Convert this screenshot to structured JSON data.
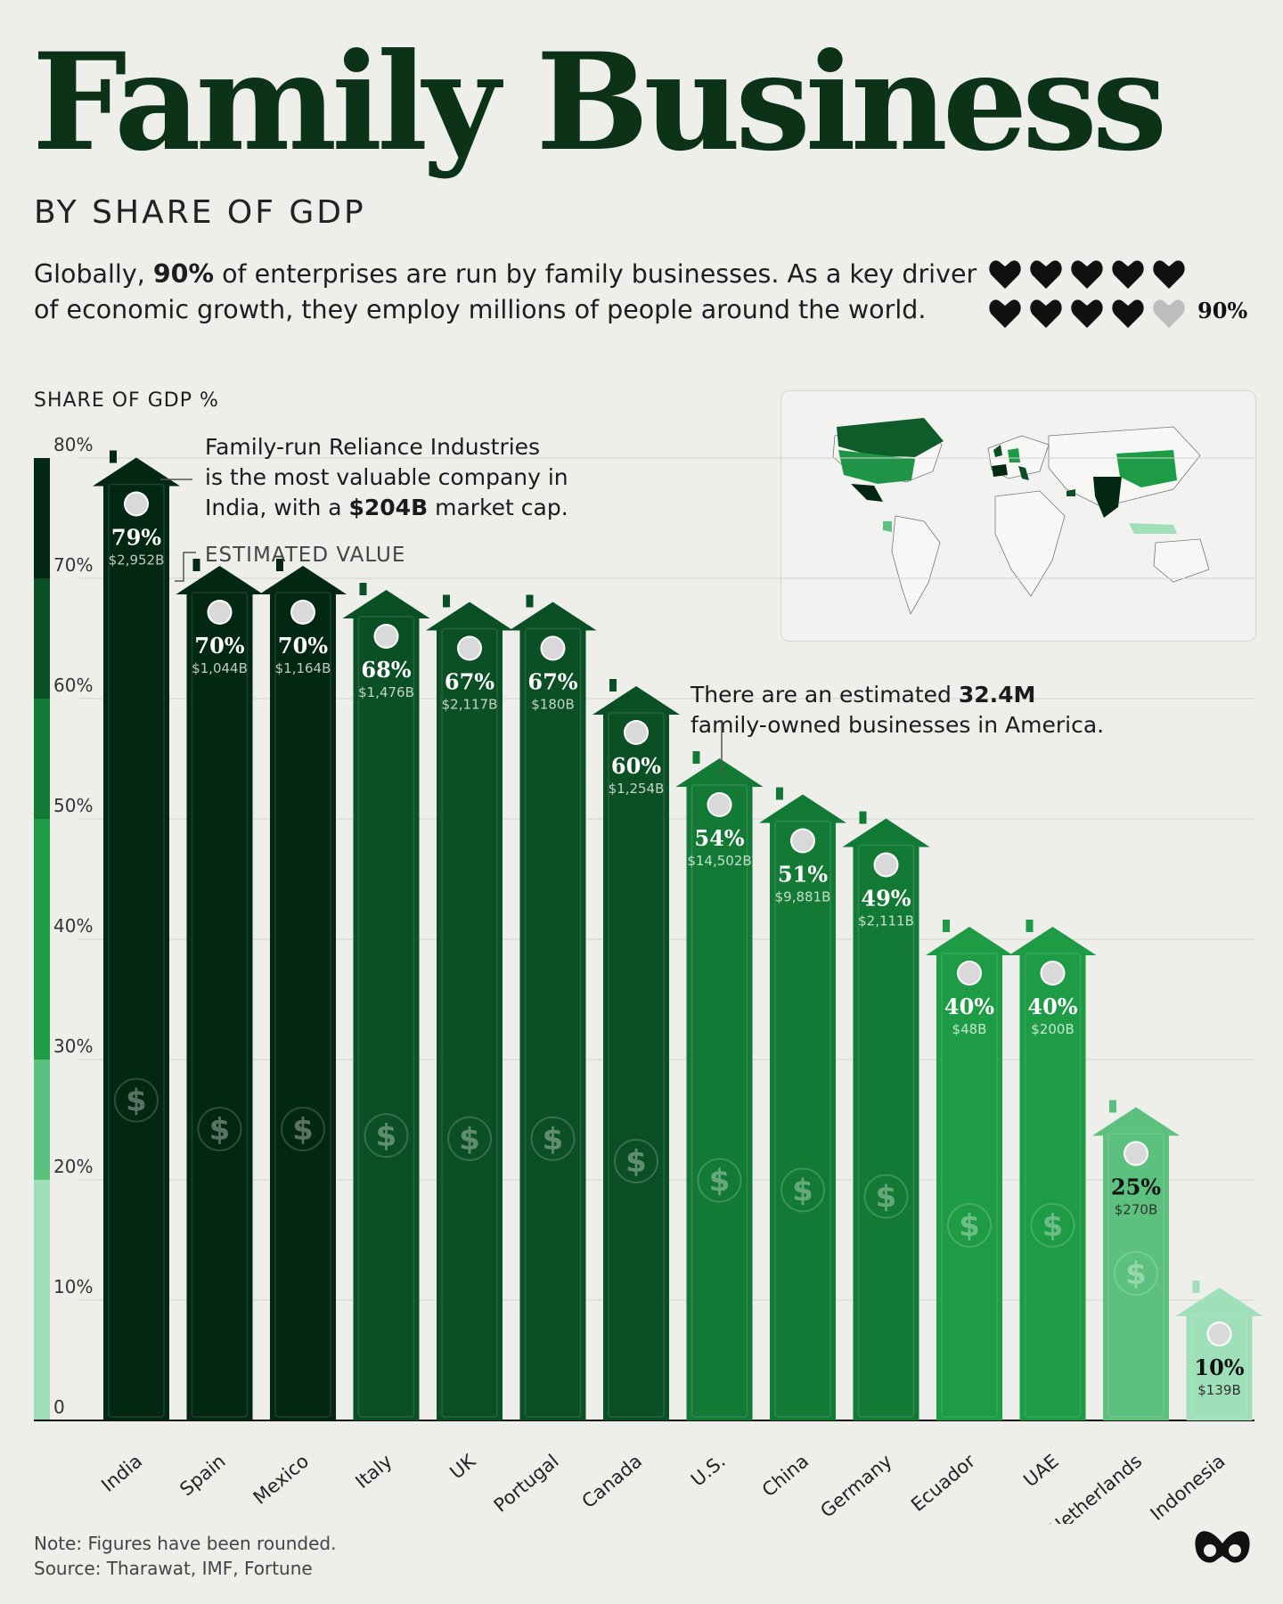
{
  "header": {
    "title": "Family Business",
    "subtitle": "BY SHARE OF GDP",
    "intro_a": "Globally, ",
    "intro_bold": "90%",
    "intro_b": " of enterprises are run by family businesses. As a key driver of economic growth, they employ millions of people around the world.",
    "hearts_label": "90%",
    "hearts_filled": 9,
    "hearts_total": 10
  },
  "chart_data": {
    "type": "bar",
    "ylabel": "SHARE OF GDP %",
    "ylim": [
      0,
      80
    ],
    "yticks": [
      "0",
      "10%",
      "20%",
      "30%",
      "40%",
      "50%",
      "60%",
      "70%",
      "80%"
    ],
    "categories": [
      "India",
      "Spain",
      "Mexico",
      "Italy",
      "UK",
      "Portugal",
      "Canada",
      "U.S.",
      "China",
      "Germany",
      "Ecuador",
      "UAE",
      "Netherlands",
      "Indonesia"
    ],
    "values": [
      79,
      70,
      70,
      68,
      67,
      67,
      60,
      54,
      51,
      49,
      40,
      40,
      25,
      10
    ],
    "value_labels": [
      "79%",
      "70%",
      "70%",
      "68%",
      "67%",
      "67%",
      "60%",
      "54%",
      "51%",
      "49%",
      "40%",
      "40%",
      "25%",
      "10%"
    ],
    "estimated_values": [
      "$2,952B",
      "$1,044B",
      "$1,164B",
      "$1,476B",
      "$2,117B",
      "$180B",
      "$1,254B",
      "$14,502B",
      "$9,881B",
      "$2,111B",
      "$48B",
      "$200B",
      "$270B",
      "$139B"
    ],
    "bar_icon": "dollar-sign",
    "colors": {
      "dark": "#022712",
      "mid_dark": "#0b4f25",
      "mid": "#137a36",
      "bright": "#1e9b45",
      "light": "#5cc17f",
      "pale": "#9fe0ba"
    },
    "annotations": {
      "india": [
        "Family-run Reliance Industries",
        "is the most valuable company in",
        "India, with a $204B market cap."
      ],
      "india_bold": "$204B",
      "estimated_value": "ESTIMATED VALUE",
      "us": [
        "There are an estimated 32.4M",
        "family-owned businesses in America."
      ],
      "us_bold": "32.4M"
    },
    "map_highlighted_regions": [
      "Canada",
      "U.S.",
      "Mexico",
      "Ecuador",
      "UK",
      "Spain",
      "Portugal",
      "Italy",
      "Netherlands",
      "Germany",
      "UAE",
      "India",
      "China",
      "Indonesia"
    ]
  },
  "footer": {
    "note": "Note: Figures have been rounded.",
    "source": "Source: Tharawat, IMF, Fortune"
  }
}
